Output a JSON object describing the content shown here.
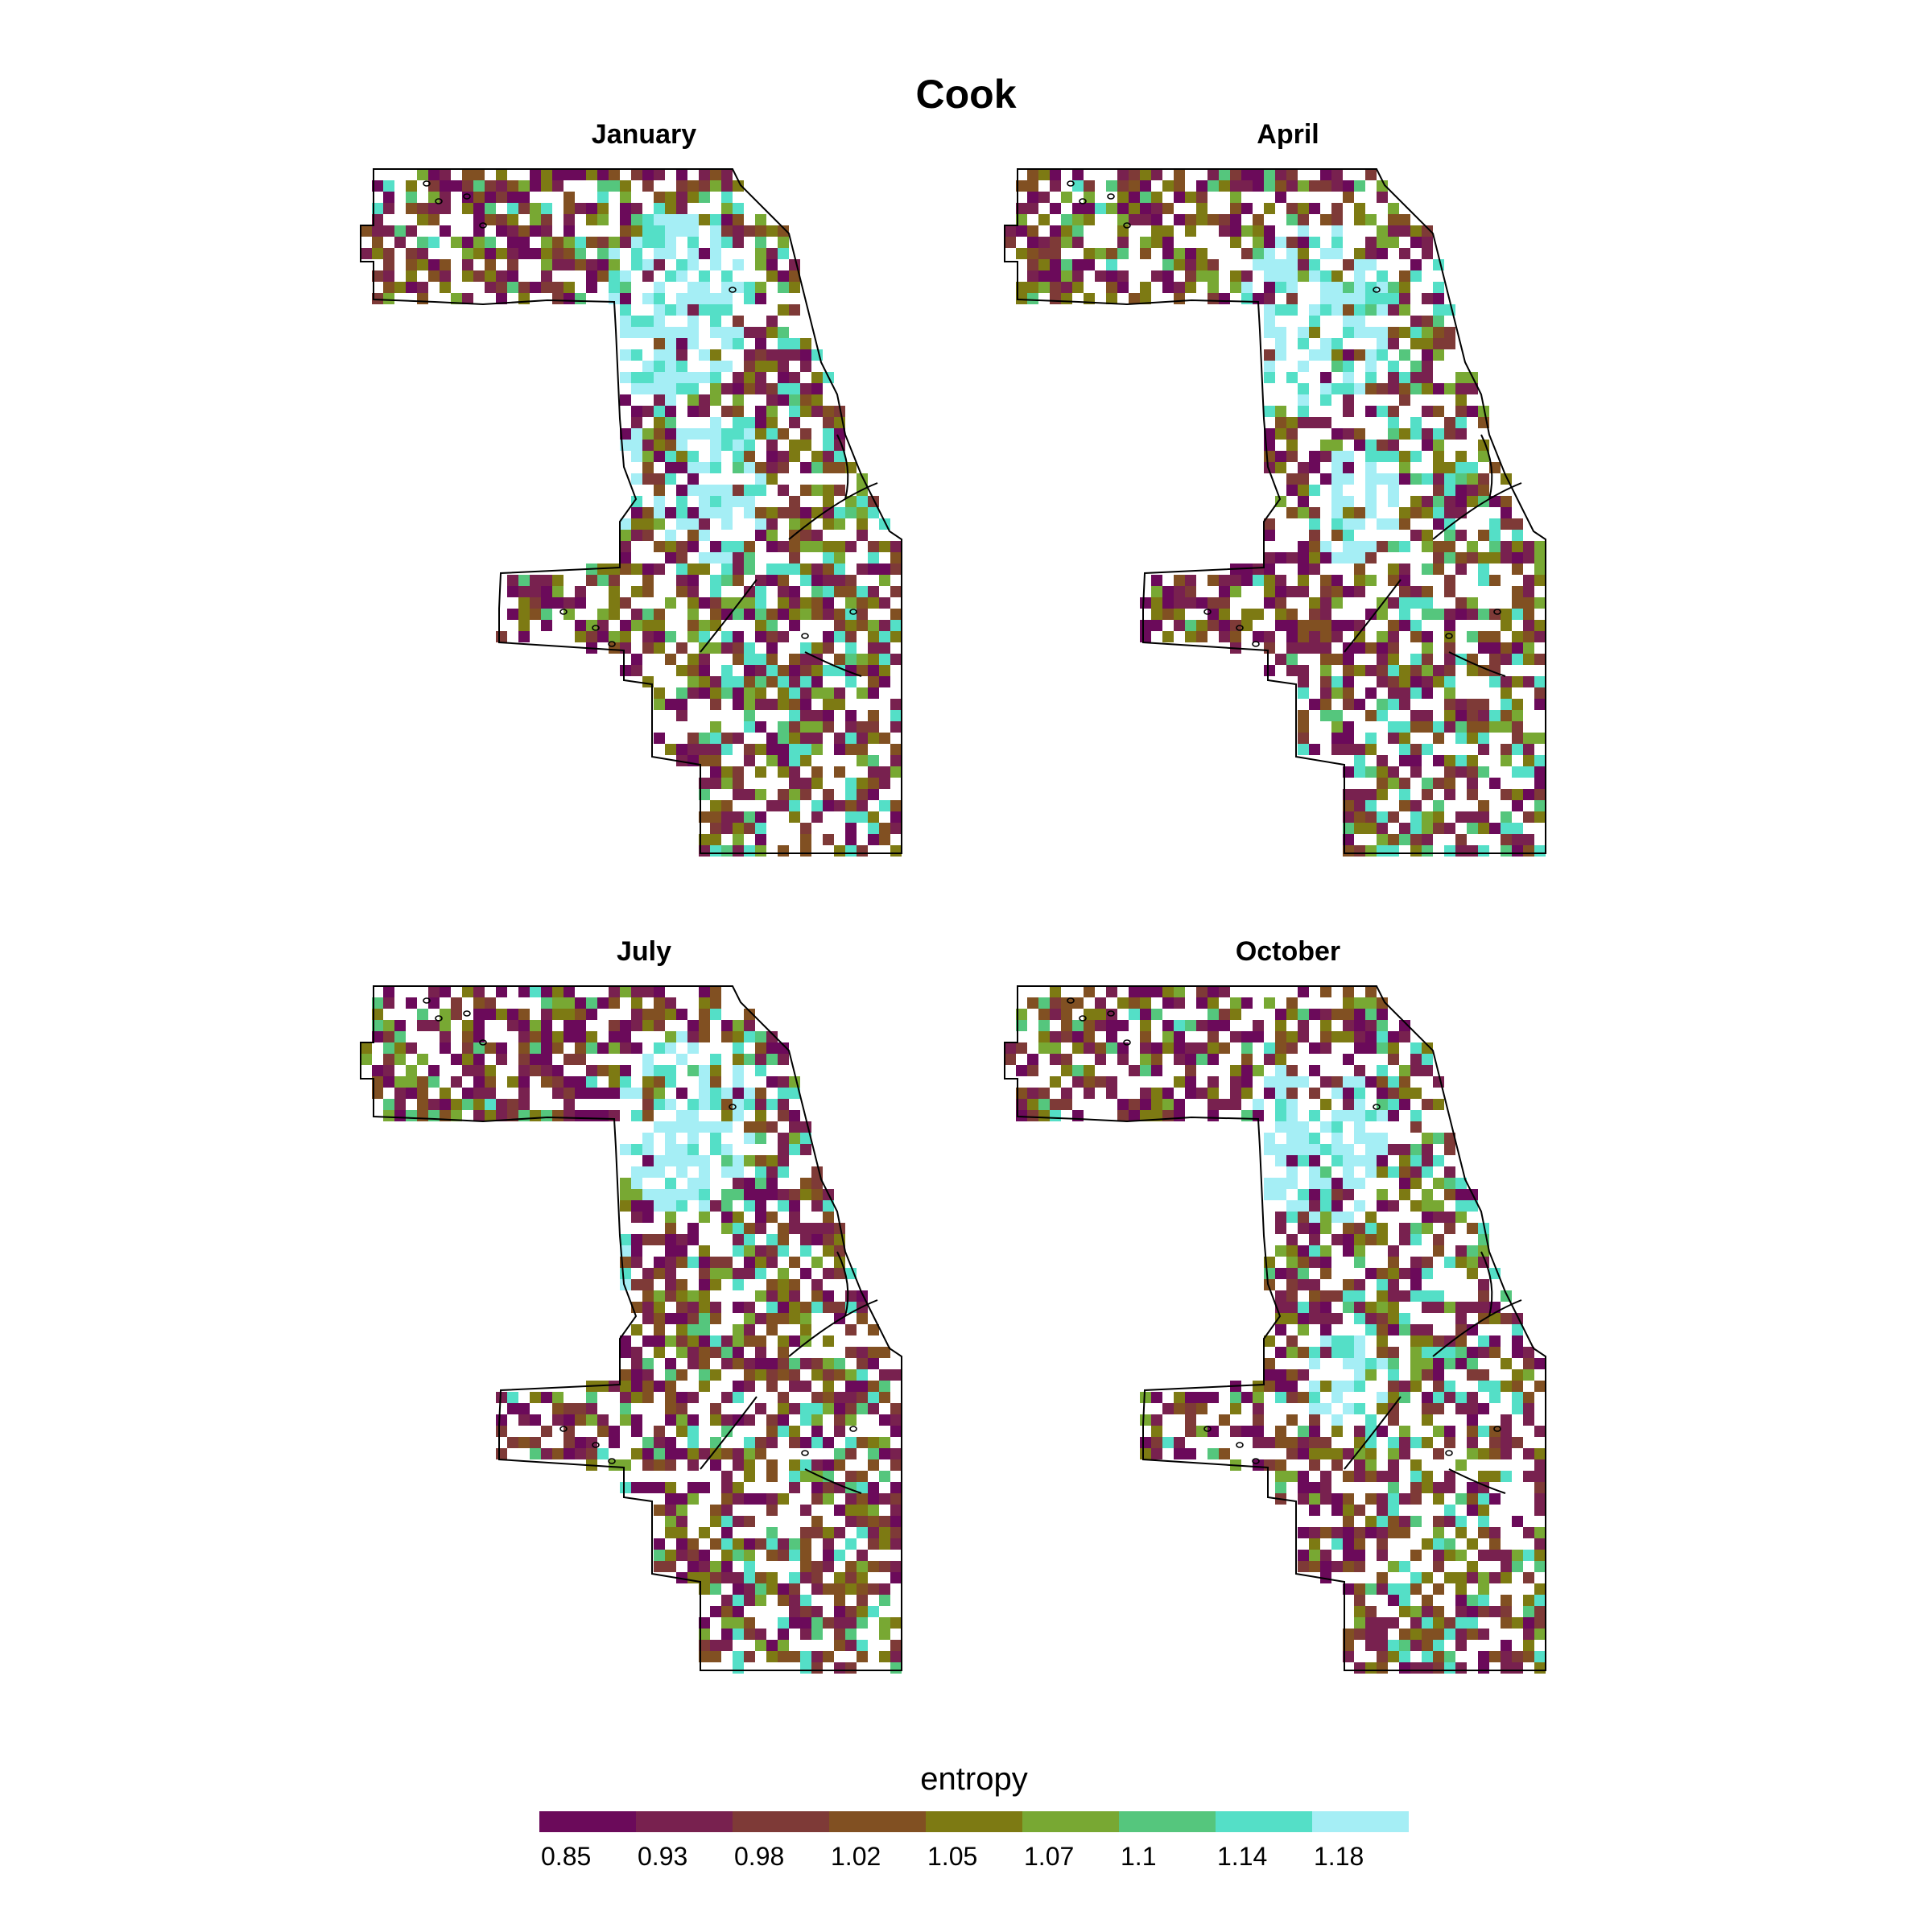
{
  "title": "Cook",
  "panels": [
    {
      "name": "January",
      "seed": 11,
      "cyan_zones": [
        [
          0.55,
          0.2,
          0.13
        ],
        [
          0.38,
          0.42,
          0.12
        ],
        [
          0.62,
          0.45,
          0.1
        ]
      ]
    },
    {
      "name": "April",
      "seed": 23,
      "cyan_zones": [
        [
          0.55,
          0.22,
          0.13
        ],
        [
          0.33,
          0.45,
          0.1
        ],
        [
          0.62,
          0.47,
          0.08
        ]
      ]
    },
    {
      "name": "July",
      "seed": 37,
      "cyan_zones": [
        [
          0.57,
          0.2,
          0.12
        ],
        [
          0.38,
          0.42,
          0.11
        ]
      ]
    },
    {
      "name": "October",
      "seed": 53,
      "cyan_zones": [
        [
          0.55,
          0.22,
          0.12
        ],
        [
          0.35,
          0.43,
          0.12
        ],
        [
          0.6,
          0.55,
          0.07
        ]
      ]
    }
  ],
  "legend": {
    "title": "entropy",
    "colors": [
      "#6B0A5A",
      "#78214F",
      "#7E3A37",
      "#815022",
      "#7D7A13",
      "#78A833",
      "#55C67D",
      "#54DFC7",
      "#A5EEF5"
    ],
    "labels": [
      "0.85",
      "0.93",
      "0.98",
      "1.02",
      "1.05",
      "1.07",
      "1.1",
      "1.14",
      "1.18"
    ]
  }
}
